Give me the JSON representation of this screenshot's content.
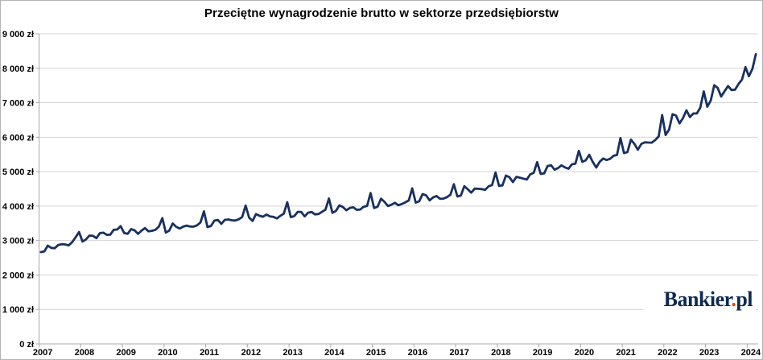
{
  "title": "Przeciętne wynagrodzenie brutto w sektorze przedsiębiorstw",
  "logo": {
    "part1": "Bankier",
    "dot": ".",
    "part2": "pl"
  },
  "colors": {
    "line": "#18315e",
    "grid": "#d4d4d4",
    "axis": "#a8a8a8",
    "tick": "#a8a8a8",
    "label": "#000000",
    "logo_navy": "#0e2a4e",
    "logo_red": "#e8490f",
    "border": "#b3b3b3",
    "background": "#ffffff"
  },
  "chart_data": {
    "type": "line",
    "title": "Przeciętne wynagrodzenie brutto w sektorze przedsiębiorstw",
    "unit": "zł",
    "frequency": "monthly",
    "x_start": "2007-01",
    "x_end": "2024-03",
    "xlabel": "",
    "ylabel": "",
    "ylim": [
      0,
      9000
    ],
    "y_tick_step": 1000,
    "y_tick_labels": [
      "0 zł",
      "1 000 zł",
      "2 000 zł",
      "3 000 zł",
      "4 000 zł",
      "5 000 zł",
      "6 000 zł",
      "7 000 zł",
      "8 000 zł",
      "9 000 zł"
    ],
    "x_tick_labels": [
      "2007",
      "2008",
      "2009",
      "2010",
      "2011",
      "2012",
      "2013",
      "2014",
      "2015",
      "2016",
      "2017",
      "2018",
      "2019",
      "2020",
      "2021",
      "2022",
      "2023",
      "2024"
    ],
    "grid": "horizontal",
    "legend": "none",
    "series": [
      {
        "name": "Przeciętne wynagrodzenie brutto w sektorze przedsiębiorstw (zł)",
        "values_by_year": {
          "2007": [
            2664,
            2687,
            2853,
            2786,
            2777,
            2870,
            2894,
            2886,
            2859,
            2952,
            3092,
            3246
          ],
          "2008": [
            2970,
            3032,
            3144,
            3137,
            3069,
            3215,
            3229,
            3165,
            3171,
            3312,
            3320,
            3420
          ],
          "2009": [
            3216,
            3195,
            3332,
            3295,
            3194,
            3287,
            3362,
            3268,
            3283,
            3312,
            3403,
            3652
          ],
          "2010": [
            3231,
            3288,
            3494,
            3399,
            3347,
            3404,
            3433,
            3407,
            3403,
            3440,
            3526,
            3848
          ],
          "2011": [
            3391,
            3422,
            3578,
            3598,
            3483,
            3600,
            3612,
            3588,
            3581,
            3617,
            3682,
            4015
          ],
          "2012": [
            3666,
            3568,
            3771,
            3720,
            3690,
            3754,
            3700,
            3686,
            3641,
            3718,
            3780,
            4112
          ],
          "2013": [
            3680,
            3709,
            3831,
            3831,
            3700,
            3808,
            3830,
            3760,
            3771,
            3834,
            3897,
            4222
          ],
          "2014": [
            3806,
            3856,
            4018,
            3977,
            3878,
            3943,
            3965,
            3893,
            3900,
            3981,
            4004,
            4379
          ],
          "2015": [
            3943,
            3982,
            4215,
            4123,
            4002,
            4040,
            4095,
            4025,
            4060,
            4110,
            4164,
            4515
          ],
          "2016": [
            4101,
            4137,
            4351,
            4313,
            4166,
            4252,
            4292,
            4213,
            4218,
            4259,
            4329,
            4636
          ],
          "2017": [
            4277,
            4305,
            4577,
            4489,
            4391,
            4508,
            4502,
            4493,
            4473,
            4574,
            4611,
            4974
          ],
          "2018": [
            4589,
            4600,
            4886,
            4840,
            4696,
            4848,
            4825,
            4798,
            4772,
            4921,
            4966,
            5275
          ],
          "2019": [
            4932,
            4949,
            5164,
            5186,
            5057,
            5104,
            5182,
            5125,
            5084,
            5213,
            5229,
            5604
          ],
          "2020": [
            5282,
            5330,
            5489,
            5285,
            5120,
            5286,
            5382,
            5338,
            5372,
            5459,
            5484,
            5974
          ],
          "2021": [
            5537,
            5569,
            5929,
            5806,
            5637,
            5802,
            5852,
            5844,
            5841,
            5917,
            6022,
            6644
          ],
          "2022": [
            6064,
            6220,
            6666,
            6627,
            6400,
            6554,
            6779,
            6583,
            6688,
            6688,
            6857,
            7329
          ],
          "2023": [
            6884,
            7065,
            7508,
            7430,
            7181,
            7335,
            7486,
            7369,
            7380,
            7544,
            7670,
            8033
          ],
          "2024": [
            7768,
            7979,
            8409
          ]
        }
      }
    ]
  }
}
